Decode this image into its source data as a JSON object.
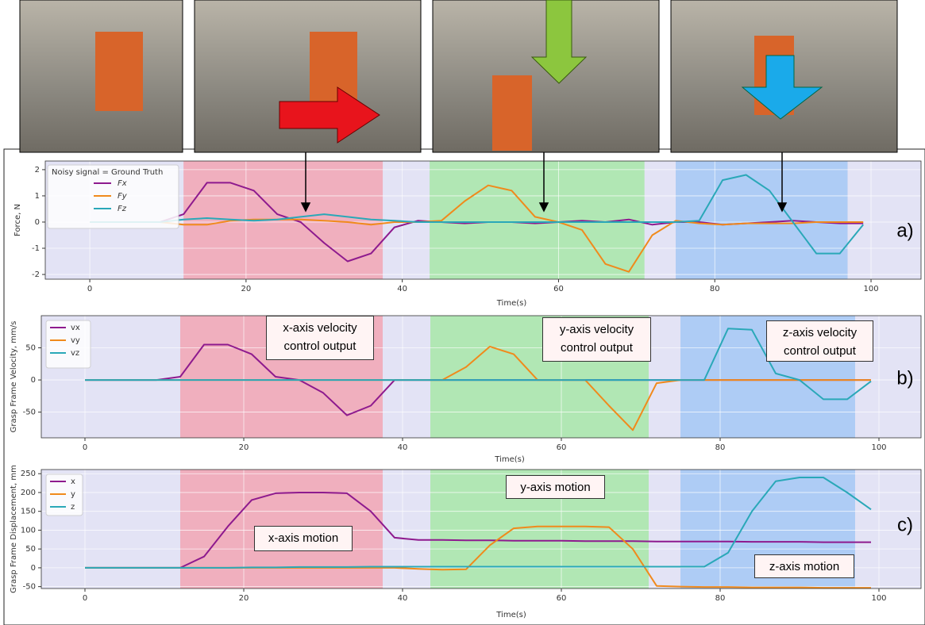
{
  "chart_data": [
    {
      "type": "line",
      "y_label": "Force, N",
      "x_label": "Time(s)",
      "panel_label": "a)",
      "legend_title": "Noisy signal = Ground Truth",
      "legend": "upper left",
      "grid": true,
      "facecolor": "#e3e3f5",
      "xlim": [
        -5.7,
        106.4
      ],
      "xticks": [
        0,
        20,
        40,
        60,
        80,
        100
      ],
      "ylim": [
        -2.18,
        2.33
      ],
      "yticks": [
        -2,
        -1,
        0,
        1,
        2
      ],
      "regions": [
        {
          "start": 12,
          "end": 37.5,
          "color": "#f2a6b4"
        },
        {
          "start": 43.5,
          "end": 71,
          "color": "#a8e8a8"
        },
        {
          "start": 75,
          "end": 97,
          "color": "#a4c8f4"
        }
      ],
      "x": [
        0,
        3,
        6,
        9,
        12,
        15,
        18,
        21,
        24,
        27,
        30,
        33,
        36,
        39,
        42,
        45,
        48,
        51,
        54,
        57,
        60,
        63,
        66,
        69,
        72,
        75,
        78,
        81,
        84,
        87,
        90,
        93,
        96,
        99
      ],
      "series": [
        {
          "name": "Fx",
          "color": "#8e1a8e",
          "values": [
            0,
            0,
            0,
            0,
            0.3,
            1.5,
            1.5,
            1.2,
            0.3,
            0,
            -0.8,
            -1.5,
            -1.2,
            -0.2,
            0.05,
            0,
            -0.05,
            0,
            0,
            -0.05,
            0,
            0.05,
            0,
            0.1,
            -0.1,
            0,
            0,
            -0.1,
            -0.05,
            0,
            0.05,
            0,
            -0.05,
            -0.05
          ]
        },
        {
          "name": "Fy",
          "color": "#f08a1c",
          "values": [
            0,
            0,
            0,
            0,
            -0.1,
            -0.1,
            0.05,
            0.1,
            0.1,
            0.1,
            0.05,
            0,
            -0.1,
            0,
            0,
            0.05,
            0.8,
            1.4,
            1.2,
            0.2,
            0,
            -0.3,
            -1.6,
            -1.9,
            -0.5,
            0.05,
            -0.05,
            -0.1,
            -0.05,
            -0.05,
            -0.05,
            0,
            0,
            0
          ]
        },
        {
          "name": "Fz",
          "color": "#2aa8b8",
          "values": [
            0,
            0,
            0,
            0,
            0.1,
            0.15,
            0.1,
            0.05,
            0.1,
            0.2,
            0.3,
            0.2,
            0.1,
            0.05,
            0,
            0,
            0,
            0,
            0,
            0,
            0,
            0,
            0,
            0,
            0,
            0,
            0.05,
            1.6,
            1.8,
            1.2,
            0,
            -1.2,
            -1.2,
            -0.1
          ]
        }
      ]
    },
    {
      "type": "line",
      "y_label": "Grasp Frame Velocity, mm/s",
      "x_label": "Time(s)",
      "panel_label": "b)",
      "legend": "upper left",
      "grid": true,
      "facecolor": "#e3e3f5",
      "xlim": [
        -5.5,
        105.3
      ],
      "xticks": [
        0,
        20,
        40,
        60,
        80,
        100
      ],
      "ylim": [
        -90,
        100
      ],
      "yticks": [
        -50,
        0,
        50
      ],
      "regions": [
        {
          "start": 12,
          "end": 37.5,
          "color": "#f2a6b4"
        },
        {
          "start": 43.5,
          "end": 71,
          "color": "#a8e8a8"
        },
        {
          "start": 75,
          "end": 97,
          "color": "#a4c8f4"
        }
      ],
      "annotations": [
        "x-axis velocity control output",
        "y-axis velocity control output",
        "z-axis velocity control output"
      ],
      "x": [
        0,
        3,
        6,
        9,
        12,
        15,
        18,
        21,
        24,
        27,
        30,
        33,
        36,
        39,
        42,
        45,
        48,
        51,
        54,
        57,
        60,
        63,
        66,
        69,
        72,
        75,
        78,
        81,
        84,
        87,
        90,
        93,
        96,
        99
      ],
      "series": [
        {
          "name": "vx",
          "color": "#8e1a8e",
          "values": [
            0,
            0,
            0,
            0,
            5,
            55,
            55,
            40,
            5,
            0,
            -20,
            -55,
            -40,
            0,
            0,
            0,
            0,
            0,
            0,
            0,
            0,
            0,
            0,
            0,
            0,
            0,
            0,
            0,
            0,
            0,
            0,
            0,
            0,
            0
          ]
        },
        {
          "name": "vy",
          "color": "#f08a1c",
          "values": [
            0,
            0,
            0,
            0,
            0,
            0,
            0,
            0,
            0,
            0,
            0,
            0,
            0,
            0,
            0,
            0,
            20,
            52,
            40,
            0,
            0,
            0,
            -40,
            -78,
            -5,
            0,
            0,
            0,
            0,
            0,
            0,
            0,
            0,
            0
          ]
        },
        {
          "name": "vz",
          "color": "#2aa8b8",
          "values": [
            0,
            0,
            0,
            0,
            0,
            0,
            0,
            0,
            0,
            0,
            0,
            0,
            0,
            0,
            0,
            0,
            0,
            0,
            0,
            0,
            0,
            0,
            0,
            0,
            0,
            0,
            0,
            80,
            78,
            10,
            0,
            -30,
            -30,
            -2
          ]
        }
      ]
    },
    {
      "type": "line",
      "y_label": "Grasp Frame Displacement, mm",
      "x_label": "Time(s)",
      "panel_label": "c)",
      "legend": "upper left",
      "grid": true,
      "facecolor": "#e3e3f5",
      "xlim": [
        -5.5,
        105.3
      ],
      "xticks": [
        0,
        20,
        40,
        60,
        80,
        100
      ],
      "ylim": [
        -55,
        261
      ],
      "yticks": [
        -50,
        0,
        50,
        100,
        150,
        200,
        250
      ],
      "regions": [
        {
          "start": 12,
          "end": 37.5,
          "color": "#f2a6b4"
        },
        {
          "start": 43.5,
          "end": 71,
          "color": "#a8e8a8"
        },
        {
          "start": 75,
          "end": 97,
          "color": "#a4c8f4"
        }
      ],
      "annotations": [
        "y-axis motion",
        "x-axis motion",
        "z-axis motion"
      ],
      "x": [
        0,
        3,
        6,
        9,
        12,
        15,
        18,
        21,
        24,
        27,
        30,
        33,
        36,
        39,
        42,
        45,
        48,
        51,
        54,
        57,
        60,
        63,
        66,
        69,
        72,
        75,
        78,
        81,
        84,
        87,
        90,
        93,
        96,
        99
      ],
      "series": [
        {
          "name": "x",
          "color": "#8e1a8e",
          "values": [
            0,
            0,
            0,
            0,
            0,
            30,
            110,
            180,
            198,
            200,
            200,
            198,
            150,
            80,
            74,
            74,
            73,
            73,
            72,
            72,
            72,
            71,
            71,
            71,
            70,
            70,
            70,
            70,
            69,
            69,
            69,
            68,
            68,
            68
          ]
        },
        {
          "name": "y",
          "color": "#f08a1c",
          "values": [
            0,
            0,
            0,
            0,
            0,
            0,
            0,
            0,
            0,
            0,
            0,
            0,
            0,
            0,
            -3,
            -5,
            -4,
            60,
            105,
            110,
            110,
            110,
            108,
            50,
            -48,
            -50,
            -51,
            -51,
            -52,
            -52,
            -52,
            -53,
            -53,
            -53
          ]
        },
        {
          "name": "z",
          "color": "#2aa8b8",
          "values": [
            0,
            0,
            0,
            0,
            0,
            0,
            0,
            1,
            1,
            2,
            2,
            2,
            3,
            3,
            3,
            3,
            3,
            3,
            3,
            3,
            3,
            3,
            3,
            3,
            3,
            3,
            3,
            40,
            150,
            230,
            240,
            240,
            200,
            155
          ]
        }
      ]
    }
  ]
}
